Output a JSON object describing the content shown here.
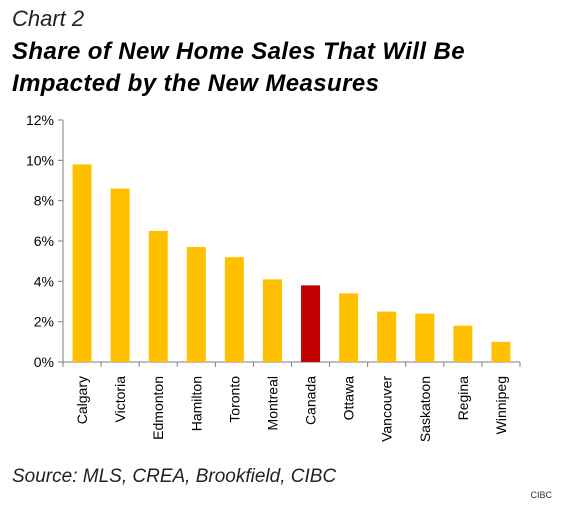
{
  "header": {
    "chart_label": "Chart 2",
    "title": "Share of New Home Sales That Will Be Impacted by the New Measures"
  },
  "footer": {
    "source": "Source: MLS, CREA, Brookfield, CIBC",
    "credit": "CIBC"
  },
  "chart_data": {
    "type": "bar",
    "categories": [
      "Calgary",
      "Victoria",
      "Edmonton",
      "Hamilton",
      "Toronto",
      "Montreal",
      "Canada",
      "Ottawa",
      "Vancouver",
      "Saskatoon",
      "Regina",
      "Winnipeg"
    ],
    "values": [
      9.8,
      8.6,
      6.5,
      5.7,
      5.2,
      4.1,
      3.8,
      3.4,
      2.5,
      2.4,
      1.8,
      1.0
    ],
    "highlight": "Canada",
    "ylim": [
      0,
      12
    ],
    "yticks": [
      "0%",
      "2%",
      "4%",
      "6%",
      "8%",
      "10%",
      "12%"
    ],
    "grid": false,
    "colors": {
      "bar": "#FFC000",
      "highlight": "#C00000",
      "axis": "#7F7F7F"
    }
  }
}
